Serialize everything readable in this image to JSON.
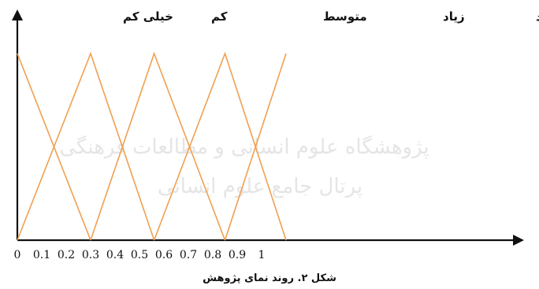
{
  "watermark": {
    "line1": "پژوهشگاه علوم انسانی و مطالعات فرهنگی",
    "line2": "پرتال جامع علوم انسانی"
  },
  "chart_data": {
    "type": "line",
    "title": "",
    "caption": "شکل ۲. روند نمای پژوهش",
    "xlabel": "",
    "ylabel": "",
    "x_ticks": [
      "0",
      "0.1",
      "0.2",
      "0.3",
      "0.4",
      "0.5",
      "0.6",
      "0.7",
      "0.8",
      "0.9",
      "1"
    ],
    "xlim": [
      0,
      1.1
    ],
    "ylim": [
      0,
      1
    ],
    "grid": false,
    "line_color": "#f0a050",
    "axis_color": "#111111",
    "series": [
      {
        "name": "خیلی کم",
        "x": [
          0,
          0.3
        ],
        "y": [
          1,
          0
        ]
      },
      {
        "name": "کم",
        "x": [
          0,
          0.3,
          0.56
        ],
        "y": [
          0,
          1,
          0
        ]
      },
      {
        "name": "متوسط",
        "x": [
          0.3,
          0.56,
          0.85
        ],
        "y": [
          0,
          1,
          0
        ]
      },
      {
        "name": "زیاد",
        "x": [
          0.56,
          0.85,
          1.1
        ],
        "y": [
          0,
          1,
          0
        ]
      },
      {
        "name": "خیلی زیاد",
        "x": [
          0.85,
          1.1
        ],
        "y": [
          0,
          1
        ]
      }
    ],
    "term_labels": [
      "خیلی زیاد",
      "زیاد",
      "متوسط",
      "کم",
      "خیلی کم"
    ]
  }
}
